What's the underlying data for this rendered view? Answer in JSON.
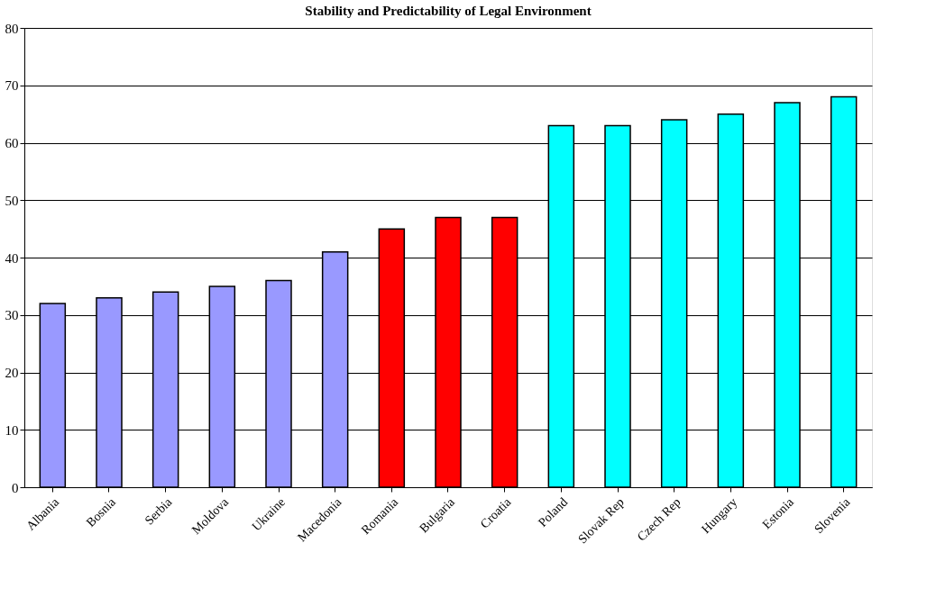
{
  "chart_data": {
    "type": "bar",
    "title": "Stability and Predictability of Legal Environment",
    "categories": [
      "Albania",
      "Bosnia",
      "Serbia",
      "Moldova",
      "Ukraine",
      "Macedonia",
      "Romania",
      "Bulgaria",
      "Croatia",
      "Poland",
      "Slovak Rep",
      "Czech Rep",
      "Hungary",
      "Estonia",
      "Slovenia"
    ],
    "values": [
      32,
      33,
      34,
      35,
      36,
      41,
      45,
      47,
      47,
      63,
      63,
      64,
      65,
      67,
      68
    ],
    "colors": [
      "#9999ff",
      "#9999ff",
      "#9999ff",
      "#9999ff",
      "#9999ff",
      "#9999ff",
      "#ff0000",
      "#ff0000",
      "#ff0000",
      "#00ffff",
      "#00ffff",
      "#00ffff",
      "#00ffff",
      "#00ffff",
      "#00ffff"
    ],
    "ylim": [
      0,
      80
    ],
    "yticks": [
      0,
      10,
      20,
      30,
      40,
      50,
      60,
      70,
      80
    ],
    "grid": "y"
  }
}
